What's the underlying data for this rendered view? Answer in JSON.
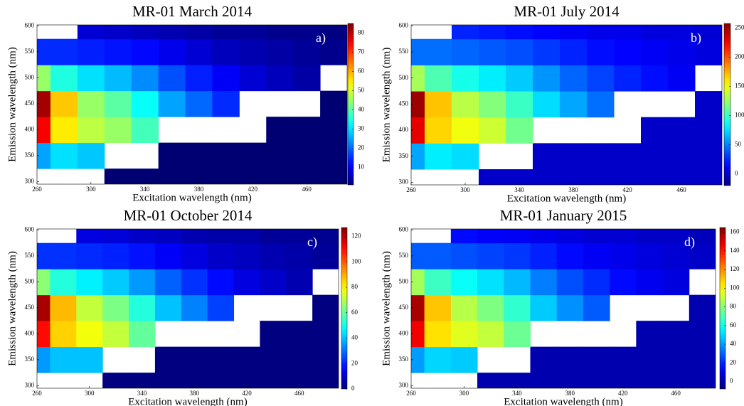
{
  "chart_data": [
    {
      "type": "contour",
      "title": "MR-01 March 2014",
      "panel_label": "a)",
      "xlabel": "Excitation wavelength (nm)",
      "ylabel": "Emission wavelength (nm)",
      "colormap": "jet",
      "x": [
        260,
        280,
        300,
        320,
        340,
        360,
        380,
        400,
        420,
        440,
        460,
        480
      ],
      "y": [
        300,
        350,
        400,
        450,
        500,
        550,
        600
      ],
      "z": [
        [
          null,
          null,
          null,
          0,
          0,
          0,
          0,
          0,
          0,
          0,
          0,
          0
        ],
        [
          25,
          30,
          28,
          null,
          null,
          0,
          0,
          0,
          0,
          0,
          0,
          0
        ],
        [
          75,
          55,
          48,
          45,
          38,
          null,
          null,
          null,
          null,
          0,
          0,
          0
        ],
        [
          82,
          58,
          45,
          40,
          33,
          25,
          20,
          15,
          null,
          null,
          null,
          0
        ],
        [
          45,
          35,
          30,
          27,
          23,
          18,
          14,
          11,
          8,
          6,
          4,
          null
        ],
        [
          15,
          15,
          14,
          13,
          12,
          10,
          8,
          6,
          5,
          4,
          3,
          2
        ],
        [
          null,
          null,
          8,
          7,
          6,
          5,
          4,
          3,
          3,
          2,
          2,
          1
        ]
      ],
      "xlim": [
        260,
        490
      ],
      "ylim": [
        295,
        602
      ],
      "xticks": [
        260,
        300,
        340,
        380,
        420,
        460
      ],
      "yticks": [
        300,
        350,
        400,
        450,
        500,
        550,
        600
      ],
      "clim": [
        1,
        85
      ],
      "cticks": [
        10,
        20,
        30,
        40,
        50,
        60,
        70,
        80
      ]
    },
    {
      "type": "contour",
      "title": "MR-01 July 2014",
      "panel_label": "b)",
      "xlabel": "Excitation wavelength (nm)",
      "ylabel": "Emission wavelength (nm)",
      "colormap": "jet",
      "x": [
        260,
        280,
        300,
        320,
        340,
        360,
        380,
        400,
        420,
        440,
        460,
        480
      ],
      "y": [
        300,
        350,
        400,
        450,
        500,
        550,
        600
      ],
      "z": [
        [
          null,
          null,
          null,
          0,
          0,
          0,
          0,
          0,
          0,
          0,
          0,
          0
        ],
        [
          60,
          80,
          75,
          null,
          null,
          0,
          0,
          0,
          0,
          0,
          0,
          0
        ],
        [
          230,
          165,
          150,
          140,
          115,
          null,
          null,
          null,
          null,
          0,
          0,
          0
        ],
        [
          250,
          170,
          135,
          120,
          100,
          75,
          60,
          45,
          null,
          null,
          null,
          0
        ],
        [
          130,
          105,
          90,
          80,
          70,
          55,
          42,
          33,
          24,
          18,
          12,
          null
        ],
        [
          45,
          45,
          42,
          39,
          36,
          30,
          24,
          18,
          15,
          12,
          9,
          6
        ],
        [
          null,
          null,
          24,
          21,
          18,
          15,
          12,
          9,
          9,
          6,
          6,
          3
        ]
      ],
      "xlim": [
        260,
        490
      ],
      "ylim": [
        295,
        602
      ],
      "xticks": [
        260,
        300,
        340,
        380,
        420,
        460
      ],
      "yticks": [
        300,
        350,
        400,
        450,
        500,
        550,
        600
      ],
      "clim": [
        -20,
        258
      ],
      "cticks": [
        0,
        50,
        100,
        150,
        200,
        250
      ]
    },
    {
      "type": "contour",
      "title": "MR-01 October 2014",
      "panel_label": "c)",
      "xlabel": "Excitation wavelength (nm)",
      "ylabel": "Emission wavelength (nm)",
      "colormap": "jet",
      "x": [
        260,
        280,
        300,
        320,
        340,
        360,
        380,
        400,
        420,
        440,
        460,
        480
      ],
      "y": [
        300,
        350,
        400,
        450,
        500,
        550,
        600
      ],
      "z": [
        [
          null,
          null,
          null,
          0,
          0,
          0,
          0,
          0,
          0,
          0,
          0,
          0
        ],
        [
          35,
          40,
          40,
          null,
          null,
          0,
          0,
          0,
          0,
          0,
          0,
          0
        ],
        [
          110,
          85,
          78,
          72,
          60,
          null,
          null,
          null,
          null,
          0,
          0,
          0
        ],
        [
          122,
          88,
          72,
          63,
          52,
          40,
          32,
          24,
          null,
          null,
          null,
          0
        ],
        [
          65,
          52,
          46,
          41,
          35,
          28,
          22,
          17,
          12,
          9,
          6,
          null
        ],
        [
          22,
          22,
          21,
          20,
          18,
          15,
          12,
          9,
          8,
          6,
          5,
          3
        ],
        [
          null,
          null,
          12,
          11,
          9,
          8,
          6,
          5,
          5,
          3,
          3,
          2
        ]
      ],
      "xlim": [
        260,
        490
      ],
      "ylim": [
        295,
        602
      ],
      "xticks": [
        260,
        300,
        340,
        380,
        420,
        460
      ],
      "yticks": [
        300,
        350,
        400,
        450,
        500,
        550,
        600
      ],
      "clim": [
        0,
        127
      ],
      "cticks": [
        0,
        20,
        40,
        60,
        80,
        100,
        120
      ]
    },
    {
      "type": "contour",
      "title": "MR-01 January 2015",
      "panel_label": "d)",
      "xlabel": "Excitation wavelength (nm)",
      "ylabel": "Emission wavelength (nm)",
      "colormap": "jet",
      "x": [
        260,
        280,
        300,
        320,
        340,
        360,
        380,
        400,
        420,
        440,
        460,
        480
      ],
      "y": [
        300,
        350,
        400,
        450,
        500,
        550,
        600
      ],
      "z": [
        [
          null,
          null,
          null,
          0,
          0,
          0,
          0,
          0,
          0,
          0,
          0,
          0
        ],
        [
          40,
          50,
          48,
          null,
          null,
          0,
          0,
          0,
          0,
          0,
          0,
          0
        ],
        [
          145,
          105,
          95,
          90,
          75,
          null,
          null,
          null,
          null,
          0,
          0,
          0
        ],
        [
          158,
          110,
          88,
          78,
          65,
          48,
          38,
          29,
          null,
          null,
          null,
          0
        ],
        [
          85,
          67,
          58,
          52,
          45,
          35,
          27,
          21,
          15,
          11,
          8,
          null
        ],
        [
          29,
          29,
          27,
          25,
          23,
          19,
          15,
          12,
          10,
          8,
          6,
          4
        ],
        [
          null,
          null,
          15,
          13,
          12,
          10,
          8,
          6,
          6,
          4,
          4,
          2
        ]
      ],
      "xlim": [
        260,
        490
      ],
      "ylim": [
        295,
        602
      ],
      "xticks": [
        260,
        300,
        340,
        380,
        420,
        460
      ],
      "yticks": [
        300,
        350,
        400,
        450,
        500,
        550,
        600
      ],
      "clim": [
        -8,
        165
      ],
      "cticks": [
        0,
        20,
        40,
        60,
        80,
        100,
        120,
        140,
        160
      ]
    }
  ]
}
